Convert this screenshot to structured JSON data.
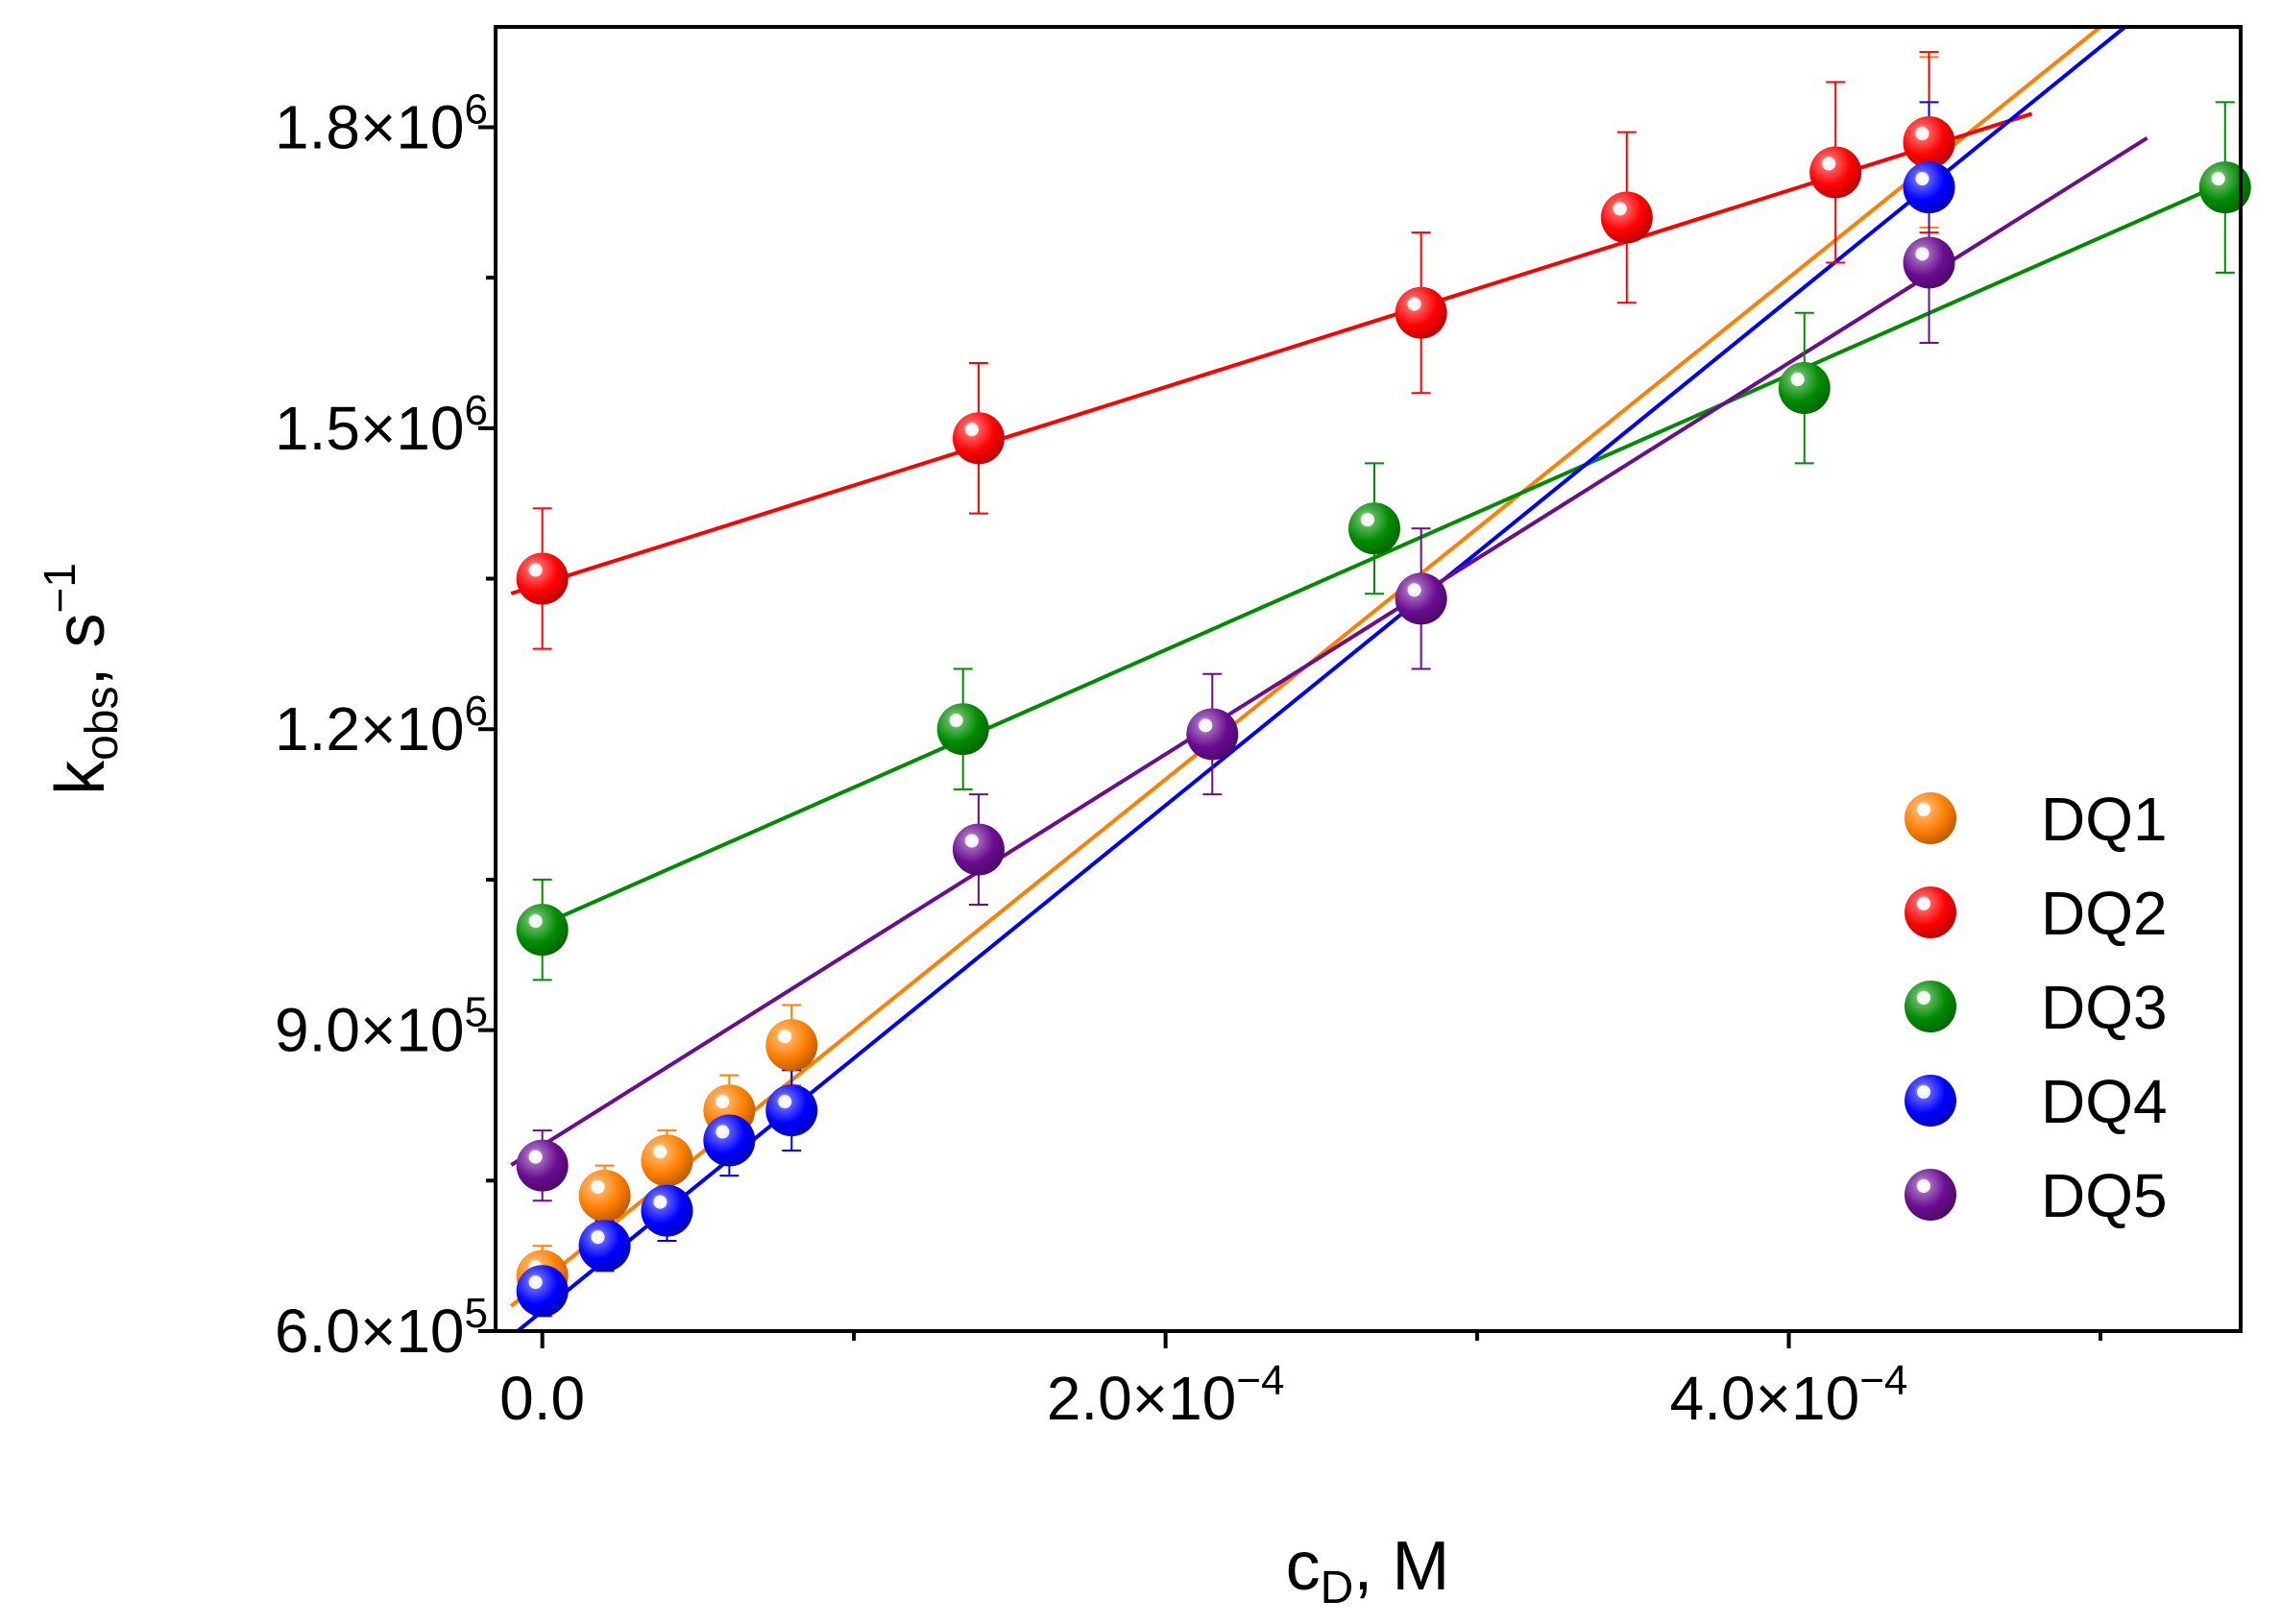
{
  "chart_data": {
    "type": "scatter",
    "title": "",
    "xlabel": {
      "main": "c",
      "sub": "D",
      "unit": ", M"
    },
    "ylabel": {
      "main": "k",
      "sub": "obs",
      "unit": ", s",
      "sup": "−1"
    },
    "xlim": [
      -1.5e-05,
      0.000545
    ],
    "ylim": [
      600000,
      1900000
    ],
    "x_ticks": [
      {
        "value": 0,
        "mant": "0.0",
        "exp": ""
      },
      {
        "value": 0.0002,
        "mant": "2.0×10",
        "exp": "−4"
      },
      {
        "value": 0.0004,
        "mant": "4.0×10",
        "exp": "−4"
      }
    ],
    "x_minor_ticks": [
      0.0001,
      0.0003,
      0.0005
    ],
    "y_ticks": [
      {
        "value": 600000,
        "mant": "6.0×10",
        "exp": "5"
      },
      {
        "value": 900000,
        "mant": "9.0×10",
        "exp": "5"
      },
      {
        "value": 1200000,
        "mant": "1.2×10",
        "exp": "6"
      },
      {
        "value": 1500000,
        "mant": "1.5×10",
        "exp": "6"
      },
      {
        "value": 1800000,
        "mant": "1.8×10",
        "exp": "6"
      }
    ],
    "y_minor_ticks": [
      750000,
      1050000,
      1350000,
      1650000
    ],
    "legend_position": "bottom-right",
    "series": [
      {
        "name": "DQ1",
        "color": "#FF7F00",
        "x": [
          0,
          2e-05,
          4e-05,
          6e-05,
          8e-05,
          0.000445
        ],
        "y": [
          655000,
          735000,
          770000,
          820000,
          885000,
          1785000
        ],
        "err": [
          30000,
          30000,
          30000,
          35000,
          40000,
          85000
        ],
        "fit": {
          "slope": 2500000000,
          "intercept": 650000,
          "x_range": [
            -1e-05,
            0.000545
          ]
        }
      },
      {
        "name": "DQ2",
        "color": "#FF0000",
        "x": [
          0,
          0.00014,
          0.000282,
          0.000348,
          0.000415,
          0.000445
        ],
        "y": [
          1350000,
          1490000,
          1615000,
          1710000,
          1755000,
          1785000
        ],
        "err": [
          70000,
          75000,
          80000,
          85000,
          90000,
          90000
        ],
        "fit": {
          "slope": 980000000,
          "intercept": 1345000,
          "x_range": [
            -1e-05,
            0.000478
          ]
        }
      },
      {
        "name": "DQ3",
        "color": "#008C00",
        "x": [
          0,
          0.000135,
          0.000267,
          0.000405,
          0.00054
        ],
        "y": [
          1000000,
          1200000,
          1400000,
          1540000,
          1740000
        ],
        "err": [
          50000,
          60000,
          65000,
          75000,
          85000
        ],
        "fit": {
          "slope": 1370000000,
          "intercept": 1005000,
          "x_range": [
            0,
            0.00054
          ]
        }
      },
      {
        "name": "DQ4",
        "color": "#0000FF",
        "x": [
          0,
          2e-05,
          4e-05,
          6e-05,
          8e-05,
          0.000445
        ],
        "y": [
          640000,
          685000,
          720000,
          790000,
          820000,
          1740000
        ],
        "err": [
          25000,
          25000,
          30000,
          35000,
          40000,
          85000
        ],
        "fit": {
          "slope": 2520000000,
          "intercept": 620000,
          "x_range": [
            -1e-05,
            0.000545
          ]
        }
      },
      {
        "name": "DQ5",
        "color": "#6A0D91",
        "x": [
          0,
          0.00014,
          0.000215,
          0.000282,
          0.000445
        ],
        "y": [
          765000,
          1080000,
          1195000,
          1330000,
          1665000
        ],
        "err": [
          35000,
          55000,
          60000,
          70000,
          80000
        ],
        "fit": {
          "slope": 1950000000,
          "intercept": 785000,
          "x_range": [
            -1e-05,
            0.000515
          ]
        }
      }
    ]
  }
}
